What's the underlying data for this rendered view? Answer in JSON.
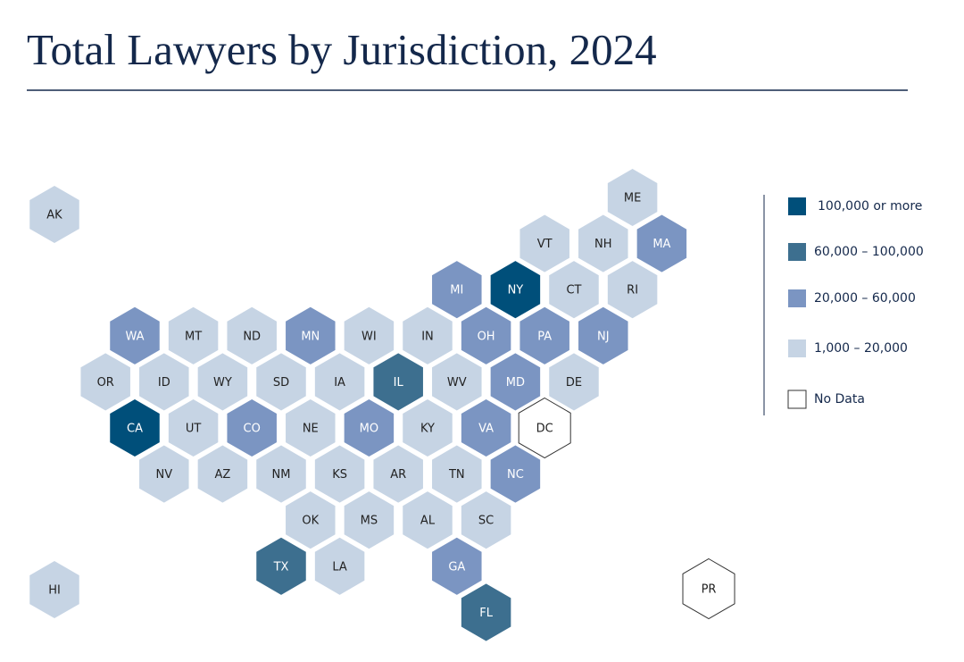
{
  "title": "Total Lawyers by Jurisdiction, 2024",
  "legend": [
    {
      "label": "100,000 or more",
      "color": "#004f7a"
    },
    {
      "label": "60,000  – 100,000",
      "color": "#3d6f8f"
    },
    {
      "label": "20,000 – 60,000",
      "color": "#7b95c2"
    },
    {
      "label": "1,000 – 20,000",
      "color": "#c6d4e4"
    },
    {
      "label": "No Data",
      "color": "#ffffff"
    }
  ],
  "states": [
    {
      "label": "AK",
      "color": "#c6d4e4"
    },
    {
      "label": "HI",
      "color": "#c6d4e4"
    },
    {
      "label": "PR",
      "color": "#ffffff"
    },
    {
      "label": "ME",
      "color": "#c6d4e4"
    },
    {
      "label": "VT",
      "color": "#c6d4e4"
    },
    {
      "label": "NH",
      "color": "#c6d4e4"
    },
    {
      "label": "MA",
      "color": "#7b95c2"
    },
    {
      "label": "MI",
      "color": "#7b95c2"
    },
    {
      "label": "NY",
      "color": "#004f7a"
    },
    {
      "label": "CT",
      "color": "#c6d4e4"
    },
    {
      "label": "RI",
      "color": "#c6d4e4"
    },
    {
      "label": "WA",
      "color": "#7b95c2"
    },
    {
      "label": "MT",
      "color": "#c6d4e4"
    },
    {
      "label": "ND",
      "color": "#c6d4e4"
    },
    {
      "label": "MN",
      "color": "#7b95c2"
    },
    {
      "label": "WI",
      "color": "#c6d4e4"
    },
    {
      "label": "IN",
      "color": "#c6d4e4"
    },
    {
      "label": "OH",
      "color": "#7b95c2"
    },
    {
      "label": "PA",
      "color": "#7b95c2"
    },
    {
      "label": "NJ",
      "color": "#7b95c2"
    },
    {
      "label": "OR",
      "color": "#c6d4e4"
    },
    {
      "label": "ID",
      "color": "#c6d4e4"
    },
    {
      "label": "WY",
      "color": "#c6d4e4"
    },
    {
      "label": "SD",
      "color": "#c6d4e4"
    },
    {
      "label": "IA",
      "color": "#c6d4e4"
    },
    {
      "label": "IL",
      "color": "#3d6f8f"
    },
    {
      "label": "WV",
      "color": "#c6d4e4"
    },
    {
      "label": "MD",
      "color": "#7b95c2"
    },
    {
      "label": "DE",
      "color": "#c6d4e4"
    },
    {
      "label": "CA",
      "color": "#004f7a"
    },
    {
      "label": "UT",
      "color": "#c6d4e4"
    },
    {
      "label": "CO",
      "color": "#7b95c2"
    },
    {
      "label": "NE",
      "color": "#c6d4e4"
    },
    {
      "label": "MO",
      "color": "#7b95c2"
    },
    {
      "label": "KY",
      "color": "#c6d4e4"
    },
    {
      "label": "VA",
      "color": "#7b95c2"
    },
    {
      "label": "DC",
      "color": "#ffffff"
    },
    {
      "label": "NV",
      "color": "#c6d4e4"
    },
    {
      "label": "AZ",
      "color": "#c6d4e4"
    },
    {
      "label": "NM",
      "color": "#c6d4e4"
    },
    {
      "label": "KS",
      "color": "#c6d4e4"
    },
    {
      "label": "AR",
      "color": "#c6d4e4"
    },
    {
      "label": "TN",
      "color": "#c6d4e4"
    },
    {
      "label": "NC",
      "color": "#7b95c2"
    },
    {
      "label": "OK",
      "color": "#c6d4e4"
    },
    {
      "label": "MS",
      "color": "#c6d4e4"
    },
    {
      "label": "AL",
      "color": "#c6d4e4"
    },
    {
      "label": "SC",
      "color": "#c6d4e4"
    },
    {
      "label": "TX",
      "color": "#3d6f8f"
    },
    {
      "label": "LA",
      "color": "#c6d4e4"
    },
    {
      "label": "GA",
      "color": "#7b95c2"
    },
    {
      "label": "FL",
      "color": "#3d6f8f"
    }
  ]
}
